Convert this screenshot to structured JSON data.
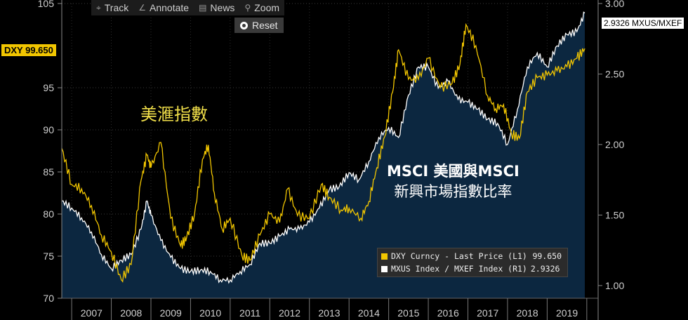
{
  "toolbar": {
    "track": "Track",
    "annotate": "Annotate",
    "news": "News",
    "zoom": "Zoom",
    "reset": "Reset",
    "icons": [
      "crosshair-icon",
      "pencil-icon",
      "news-icon",
      "magnifier-icon",
      "reset-icon"
    ]
  },
  "colors": {
    "background": "#000000",
    "dxy": "#f2c600",
    "ratio_line": "#ffffff",
    "ratio_fill": "#0c2740",
    "grid": "#3a3a3a"
  },
  "annotations": {
    "dxy_label": "美滙指數",
    "ratio_label_line1": "MSCI 美國與MSCI",
    "ratio_label_line2": "新興市場指數比率"
  },
  "last_values": {
    "dxy_tag": "DXY 99.650",
    "ratio_tag": "2.9326 MXUS/MXEF"
  },
  "chart_data": {
    "type": "line",
    "x_labels": [
      "2007",
      "2008",
      "2009",
      "2010",
      "2011",
      "2012",
      "2013",
      "2014",
      "2015",
      "2016",
      "2017",
      "2018",
      "2019"
    ],
    "x_range": [
      2006.75,
      2019.95
    ],
    "y_left": {
      "min": 70,
      "max": 105,
      "ticks": [
        "70",
        "75",
        "80",
        "85",
        "90",
        "95",
        "105"
      ]
    },
    "y_right": {
      "min": 0.91,
      "max": 3.0,
      "ticks": [
        "1.00",
        "1.50",
        "2.00",
        "2.50",
        "3.00"
      ]
    },
    "series": [
      {
        "name": "DXY Curncy - Last Price (L1)",
        "legend_value": "99.650",
        "axis": "left",
        "color": "#f2c600",
        "x": [
          2006.75,
          2007.0,
          2007.25,
          2007.5,
          2007.75,
          2008.0,
          2008.25,
          2008.5,
          2008.75,
          2008.9,
          2009.0,
          2009.25,
          2009.5,
          2009.75,
          2009.9,
          2010.1,
          2010.3,
          2010.45,
          2010.6,
          2010.8,
          2011.0,
          2011.3,
          2011.5,
          2011.75,
          2012.0,
          2012.25,
          2012.45,
          2012.7,
          2013.0,
          2013.3,
          2013.5,
          2013.8,
          2014.0,
          2014.3,
          2014.5,
          2014.7,
          2014.9,
          2015.1,
          2015.25,
          2015.5,
          2015.75,
          2016.0,
          2016.3,
          2016.6,
          2016.8,
          2016.95,
          2017.2,
          2017.5,
          2017.7,
          2017.9,
          2018.1,
          2018.3,
          2018.5,
          2018.75,
          2019.0,
          2019.25,
          2019.5,
          2019.75,
          2019.95
        ],
        "values": [
          87.8,
          83.5,
          83.0,
          81.0,
          77.5,
          75.5,
          72.2,
          74.0,
          84.0,
          87.0,
          85.5,
          88.5,
          79.5,
          76.2,
          77.2,
          80.0,
          86.5,
          88.2,
          82.5,
          78.2,
          79.5,
          75.0,
          74.5,
          77.5,
          80.0,
          79.0,
          83.0,
          79.8,
          79.5,
          83.5,
          82.0,
          80.5,
          80.7,
          79.5,
          81.5,
          85.5,
          89.2,
          94.5,
          99.5,
          96.0,
          96.0,
          98.5,
          95.0,
          95.5,
          97.8,
          102.5,
          100.0,
          94.0,
          92.5,
          93.0,
          89.5,
          89.0,
          94.5,
          96.2,
          96.5,
          97.0,
          97.5,
          98.5,
          99.65
        ]
      },
      {
        "name": "MXUS Index / MXEF Index (R1)",
        "legend_value": "2.9326",
        "axis": "right",
        "color": "#ffffff",
        "x": [
          2006.75,
          2007.0,
          2007.25,
          2007.5,
          2007.75,
          2008.0,
          2008.25,
          2008.5,
          2008.75,
          2008.9,
          2009.0,
          2009.25,
          2009.5,
          2009.75,
          2010.0,
          2010.25,
          2010.5,
          2010.75,
          2011.0,
          2011.25,
          2011.5,
          2011.75,
          2012.0,
          2012.25,
          2012.5,
          2012.75,
          2013.0,
          2013.25,
          2013.5,
          2013.75,
          2014.0,
          2014.25,
          2014.5,
          2014.75,
          2015.0,
          2015.25,
          2015.5,
          2015.75,
          2016.0,
          2016.25,
          2016.5,
          2016.75,
          2017.0,
          2017.25,
          2017.5,
          2017.75,
          2018.0,
          2018.25,
          2018.5,
          2018.75,
          2019.0,
          2019.25,
          2019.5,
          2019.75,
          2019.95
        ],
        "values": [
          1.6,
          1.55,
          1.48,
          1.38,
          1.22,
          1.12,
          1.18,
          1.22,
          1.4,
          1.6,
          1.5,
          1.32,
          1.2,
          1.12,
          1.1,
          1.11,
          1.1,
          1.04,
          1.04,
          1.1,
          1.15,
          1.3,
          1.3,
          1.35,
          1.4,
          1.4,
          1.45,
          1.55,
          1.68,
          1.7,
          1.8,
          1.75,
          1.88,
          2.05,
          2.12,
          2.05,
          2.35,
          2.55,
          2.55,
          2.4,
          2.45,
          2.32,
          2.3,
          2.25,
          2.18,
          2.15,
          2.0,
          2.25,
          2.55,
          2.65,
          2.55,
          2.7,
          2.78,
          2.8,
          2.9326
        ]
      }
    ]
  }
}
